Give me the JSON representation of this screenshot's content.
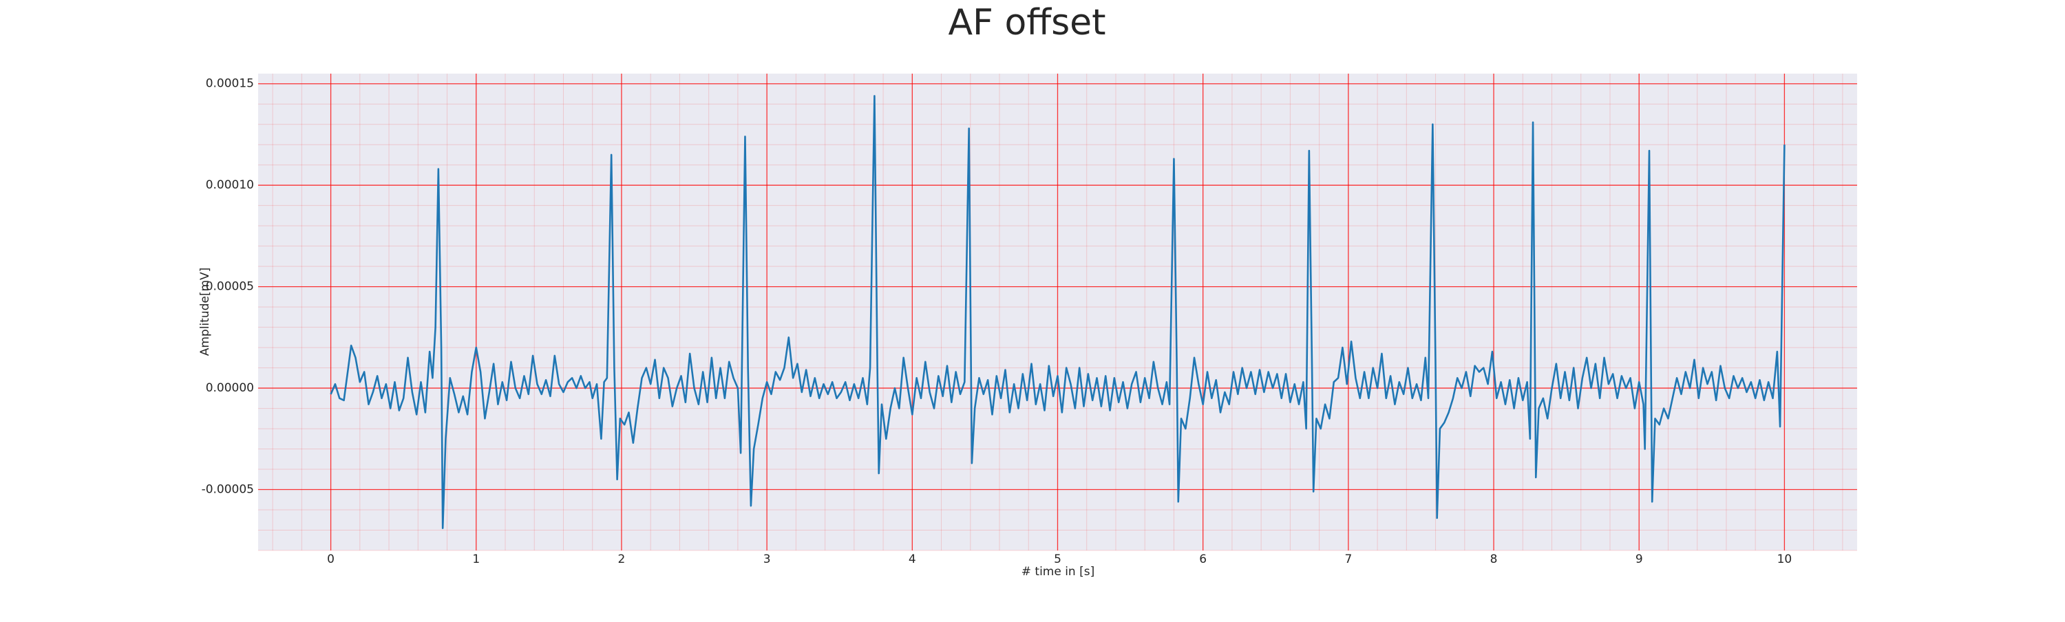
{
  "chart_data": {
    "type": "line",
    "title": "AF offset",
    "xlabel": "# time in [s]",
    "ylabel": "Amplitude[mV]",
    "color": "#1f77b4",
    "grid": true,
    "grid_color": "#ff0000",
    "minor_grid": true,
    "background": "#eaeaf2",
    "xlim": [
      -0.5,
      10.5
    ],
    "xticks": [
      0,
      1,
      2,
      3,
      4,
      5,
      6,
      7,
      8,
      9,
      10
    ],
    "ylim": [
      -8e-05,
      0.000155
    ],
    "yticks": [
      {
        "value": -5e-05,
        "label": "-0.00005"
      },
      {
        "value": 0,
        "label": "0.00000"
      },
      {
        "value": 5e-05,
        "label": "0.00005"
      },
      {
        "value": 0.0001,
        "label": "0.00010"
      },
      {
        "value": 0.00015,
        "label": "0.00015"
      }
    ],
    "x": [
      0.0,
      0.03,
      0.06,
      0.09,
      0.12,
      0.14,
      0.17,
      0.2,
      0.23,
      0.26,
      0.29,
      0.32,
      0.35,
      0.38,
      0.41,
      0.44,
      0.47,
      0.5,
      0.53,
      0.56,
      0.59,
      0.62,
      0.65,
      0.68,
      0.7,
      0.72,
      0.74,
      0.76,
      0.77,
      0.79,
      0.82,
      0.85,
      0.88,
      0.91,
      0.94,
      0.97,
      1.0,
      1.03,
      1.06,
      1.09,
      1.12,
      1.15,
      1.18,
      1.21,
      1.24,
      1.27,
      1.3,
      1.33,
      1.36,
      1.39,
      1.42,
      1.45,
      1.48,
      1.51,
      1.54,
      1.57,
      1.6,
      1.63,
      1.66,
      1.69,
      1.72,
      1.75,
      1.78,
      1.8,
      1.83,
      1.86,
      1.88,
      1.9,
      1.93,
      1.95,
      1.97,
      1.99,
      2.02,
      2.05,
      2.08,
      2.11,
      2.14,
      2.17,
      2.2,
      2.23,
      2.26,
      2.29,
      2.32,
      2.35,
      2.38,
      2.41,
      2.44,
      2.47,
      2.5,
      2.53,
      2.56,
      2.59,
      2.62,
      2.65,
      2.68,
      2.71,
      2.74,
      2.77,
      2.8,
      2.82,
      2.85,
      2.87,
      2.89,
      2.91,
      2.94,
      2.97,
      3.0,
      3.03,
      3.06,
      3.09,
      3.12,
      3.15,
      3.18,
      3.21,
      3.24,
      3.27,
      3.3,
      3.33,
      3.36,
      3.39,
      3.42,
      3.45,
      3.48,
      3.51,
      3.54,
      3.57,
      3.6,
      3.63,
      3.66,
      3.69,
      3.71,
      3.74,
      3.76,
      3.77,
      3.79,
      3.82,
      3.85,
      3.88,
      3.91,
      3.94,
      3.97,
      4.0,
      4.03,
      4.06,
      4.09,
      4.12,
      4.15,
      4.18,
      4.21,
      4.24,
      4.27,
      4.3,
      4.33,
      4.36,
      4.39,
      4.41,
      4.43,
      4.46,
      4.49,
      4.52,
      4.55,
      4.58,
      4.61,
      4.64,
      4.67,
      4.7,
      4.73,
      4.76,
      4.79,
      4.82,
      4.85,
      4.88,
      4.91,
      4.94,
      4.97,
      5.0,
      5.03,
      5.06,
      5.09,
      5.12,
      5.15,
      5.18,
      5.21,
      5.24,
      5.27,
      5.3,
      5.33,
      5.36,
      5.39,
      5.42,
      5.45,
      5.48,
      5.51,
      5.54,
      5.57,
      5.6,
      5.63,
      5.66,
      5.69,
      5.72,
      5.75,
      5.77,
      5.8,
      5.82,
      5.83,
      5.85,
      5.88,
      5.91,
      5.94,
      5.97,
      6.0,
      6.03,
      6.06,
      6.09,
      6.12,
      6.15,
      6.18,
      6.21,
      6.24,
      6.27,
      6.3,
      6.33,
      6.36,
      6.39,
      6.42,
      6.45,
      6.48,
      6.51,
      6.54,
      6.57,
      6.6,
      6.63,
      6.66,
      6.69,
      6.71,
      6.73,
      6.75,
      6.76,
      6.78,
      6.81,
      6.84,
      6.87,
      6.9,
      6.93,
      6.96,
      6.99,
      7.02,
      7.05,
      7.08,
      7.11,
      7.14,
      7.17,
      7.2,
      7.23,
      7.26,
      7.29,
      7.32,
      7.35,
      7.38,
      7.41,
      7.44,
      7.47,
      7.5,
      7.53,
      7.55,
      7.58,
      7.6,
      7.61,
      7.63,
      7.66,
      7.69,
      7.72,
      7.75,
      7.78,
      7.81,
      7.84,
      7.87,
      7.9,
      7.93,
      7.96,
      7.99,
      8.02,
      8.05,
      8.08,
      8.11,
      8.14,
      8.17,
      8.2,
      8.23,
      8.25,
      8.27,
      8.29,
      8.31,
      8.34,
      8.37,
      8.4,
      8.43,
      8.46,
      8.49,
      8.52,
      8.55,
      8.58,
      8.61,
      8.64,
      8.67,
      8.7,
      8.73,
      8.76,
      8.79,
      8.82,
      8.85,
      8.88,
      8.91,
      8.94,
      8.97,
      9.0,
      9.03,
      9.04,
      9.07,
      9.09,
      9.11,
      9.14,
      9.17,
      9.2,
      9.23,
      9.26,
      9.29,
      9.32,
      9.35,
      9.38,
      9.41,
      9.44,
      9.47,
      9.5,
      9.53,
      9.56,
      9.59,
      9.62,
      9.65,
      9.68,
      9.71,
      9.74,
      9.77,
      9.8,
      9.83,
      9.86,
      9.89,
      9.92,
      9.95,
      9.97,
      10.0
    ],
    "values": [
      -3e-06,
      2e-06,
      -5e-06,
      -6e-06,
      1e-05,
      2.1e-05,
      1.5e-05,
      3e-06,
      8e-06,
      -8e-06,
      -2e-06,
      6e-06,
      -5e-06,
      2e-06,
      -1e-05,
      3e-06,
      -1.1e-05,
      -5e-06,
      1.5e-05,
      -2e-06,
      -1.3e-05,
      3e-06,
      -1.2e-05,
      1.8e-05,
      5e-06,
      3e-05,
      0.000108,
      2e-05,
      -6.9e-05,
      -2.5e-05,
      5e-06,
      -3e-06,
      -1.2e-05,
      -4e-06,
      -1.3e-05,
      8e-06,
      2e-05,
      8e-06,
      -1.5e-05,
      -2e-06,
      1.2e-05,
      -8e-06,
      3e-06,
      -6e-06,
      1.3e-05,
      0.0,
      -5e-06,
      6e-06,
      -3e-06,
      1.6e-05,
      2e-06,
      -3e-06,
      4e-06,
      -4e-06,
      1.6e-05,
      2e-06,
      -2e-06,
      3e-06,
      5e-06,
      0.0,
      6e-06,
      0.0,
      3e-06,
      -5e-06,
      2e-06,
      -2.5e-05,
      3e-06,
      5e-06,
      0.000115,
      1e-05,
      -4.5e-05,
      -1.5e-05,
      -1.8e-05,
      -1.2e-05,
      -2.7e-05,
      -1e-05,
      5e-06,
      1e-05,
      2e-06,
      1.4e-05,
      -5e-06,
      1e-05,
      5e-06,
      -9e-06,
      0.0,
      6e-06,
      -7e-06,
      1.7e-05,
      0.0,
      -8e-06,
      8e-06,
      -7e-06,
      1.5e-05,
      -5e-06,
      1e-05,
      -5e-06,
      1.3e-05,
      5e-06,
      0.0,
      -3.2e-05,
      0.000124,
      1e-05,
      -5.8e-05,
      -3e-05,
      -1.8e-05,
      -5e-06,
      3e-06,
      -3e-06,
      8e-06,
      4e-06,
      1e-05,
      2.5e-05,
      5e-06,
      1.2e-05,
      -2e-06,
      9e-06,
      -4e-06,
      5e-06,
      -5e-06,
      2e-06,
      -3e-06,
      3e-06,
      -5e-06,
      -2e-06,
      3e-06,
      -6e-06,
      2e-06,
      -5e-06,
      5e-06,
      -8e-06,
      1e-05,
      0.000144,
      1e-05,
      -4.2e-05,
      -8e-06,
      -2.5e-05,
      -1e-05,
      0.0,
      -1e-05,
      1.5e-05,
      0.0,
      -1.3e-05,
      5e-06,
      -5e-06,
      1.3e-05,
      -2e-06,
      -1e-05,
      6e-06,
      -4e-06,
      1.1e-05,
      -7e-06,
      8e-06,
      -3e-06,
      3e-06,
      0.000128,
      -3.7e-05,
      -1e-05,
      5e-06,
      -3e-06,
      4e-06,
      -1.3e-05,
      6e-06,
      -5e-06,
      9e-06,
      -1.2e-05,
      2e-06,
      -1e-05,
      7e-06,
      -6e-06,
      1.2e-05,
      -8e-06,
      2e-06,
      -1.1e-05,
      1.1e-05,
      -4e-06,
      6e-06,
      -1.2e-05,
      1e-05,
      2e-06,
      -1e-05,
      1e-05,
      -9e-06,
      7e-06,
      -6e-06,
      5e-06,
      -9e-06,
      6e-06,
      -1.1e-05,
      5e-06,
      -7e-06,
      3e-06,
      -1e-05,
      2e-06,
      8e-06,
      -7e-06,
      5e-06,
      -5e-06,
      1.3e-05,
      0.0,
      -8e-06,
      3e-06,
      -8e-06,
      0.000113,
      1e-05,
      -5.6e-05,
      -1.5e-05,
      -2e-05,
      -5e-06,
      1.5e-05,
      2e-06,
      -8e-06,
      8e-06,
      -5e-06,
      4e-06,
      -1.2e-05,
      -2e-06,
      -8e-06,
      8e-06,
      -3e-06,
      1e-05,
      0.0,
      8e-06,
      -3e-06,
      9e-06,
      -2e-06,
      8e-06,
      0.0,
      7e-06,
      -5e-06,
      7e-06,
      -7e-06,
      2e-06,
      -8e-06,
      3e-06,
      -2e-05,
      0.000117,
      1e-05,
      -5.1e-05,
      -1.5e-05,
      -2e-05,
      -8e-06,
      -1.5e-05,
      3e-06,
      5e-06,
      2e-05,
      2e-06,
      2.3e-05,
      5e-06,
      -5e-06,
      8e-06,
      -5e-06,
      1e-05,
      0.0,
      1.7e-05,
      -5e-06,
      6e-06,
      -8e-06,
      3e-06,
      -3e-06,
      1e-05,
      -5e-06,
      2e-06,
      -6e-06,
      1.5e-05,
      -5e-06,
      0.00013,
      1e-05,
      -6.4e-05,
      -2e-05,
      -1.7e-05,
      -1.2e-05,
      -5e-06,
      5e-06,
      0.0,
      8e-06,
      -4e-06,
      1.1e-05,
      8e-06,
      1e-05,
      2e-06,
      1.8e-05,
      -5e-06,
      3e-06,
      -8e-06,
      4e-06,
      -1e-05,
      5e-06,
      -6e-06,
      3e-06,
      -2.5e-05,
      0.000131,
      -4.4e-05,
      -1e-05,
      -5e-06,
      -1.5e-05,
      0.0,
      1.2e-05,
      -5e-06,
      8e-06,
      -6e-06,
      1e-05,
      -1e-05,
      5e-06,
      1.5e-05,
      0.0,
      1.2e-05,
      -5e-06,
      1.5e-05,
      2e-06,
      7e-06,
      -5e-06,
      6e-06,
      0.0,
      5e-06,
      -1e-05,
      3e-06,
      -8e-06,
      -3e-05,
      0.000117,
      -5.6e-05,
      -1.5e-05,
      -1.8e-05,
      -1e-05,
      -1.5e-05,
      -5e-06,
      5e-06,
      -3e-06,
      8e-06,
      0.0,
      1.4e-05,
      -5e-06,
      1e-05,
      2e-06,
      8e-06,
      -6e-06,
      1.1e-05,
      0.0,
      -5e-06,
      6e-06,
      0.0,
      5e-06,
      -2e-06,
      3e-06,
      -5e-06,
      4e-06,
      -6e-06,
      3e-06,
      -5e-06,
      1.8e-05,
      -1.9e-05,
      0.00012
    ]
  }
}
